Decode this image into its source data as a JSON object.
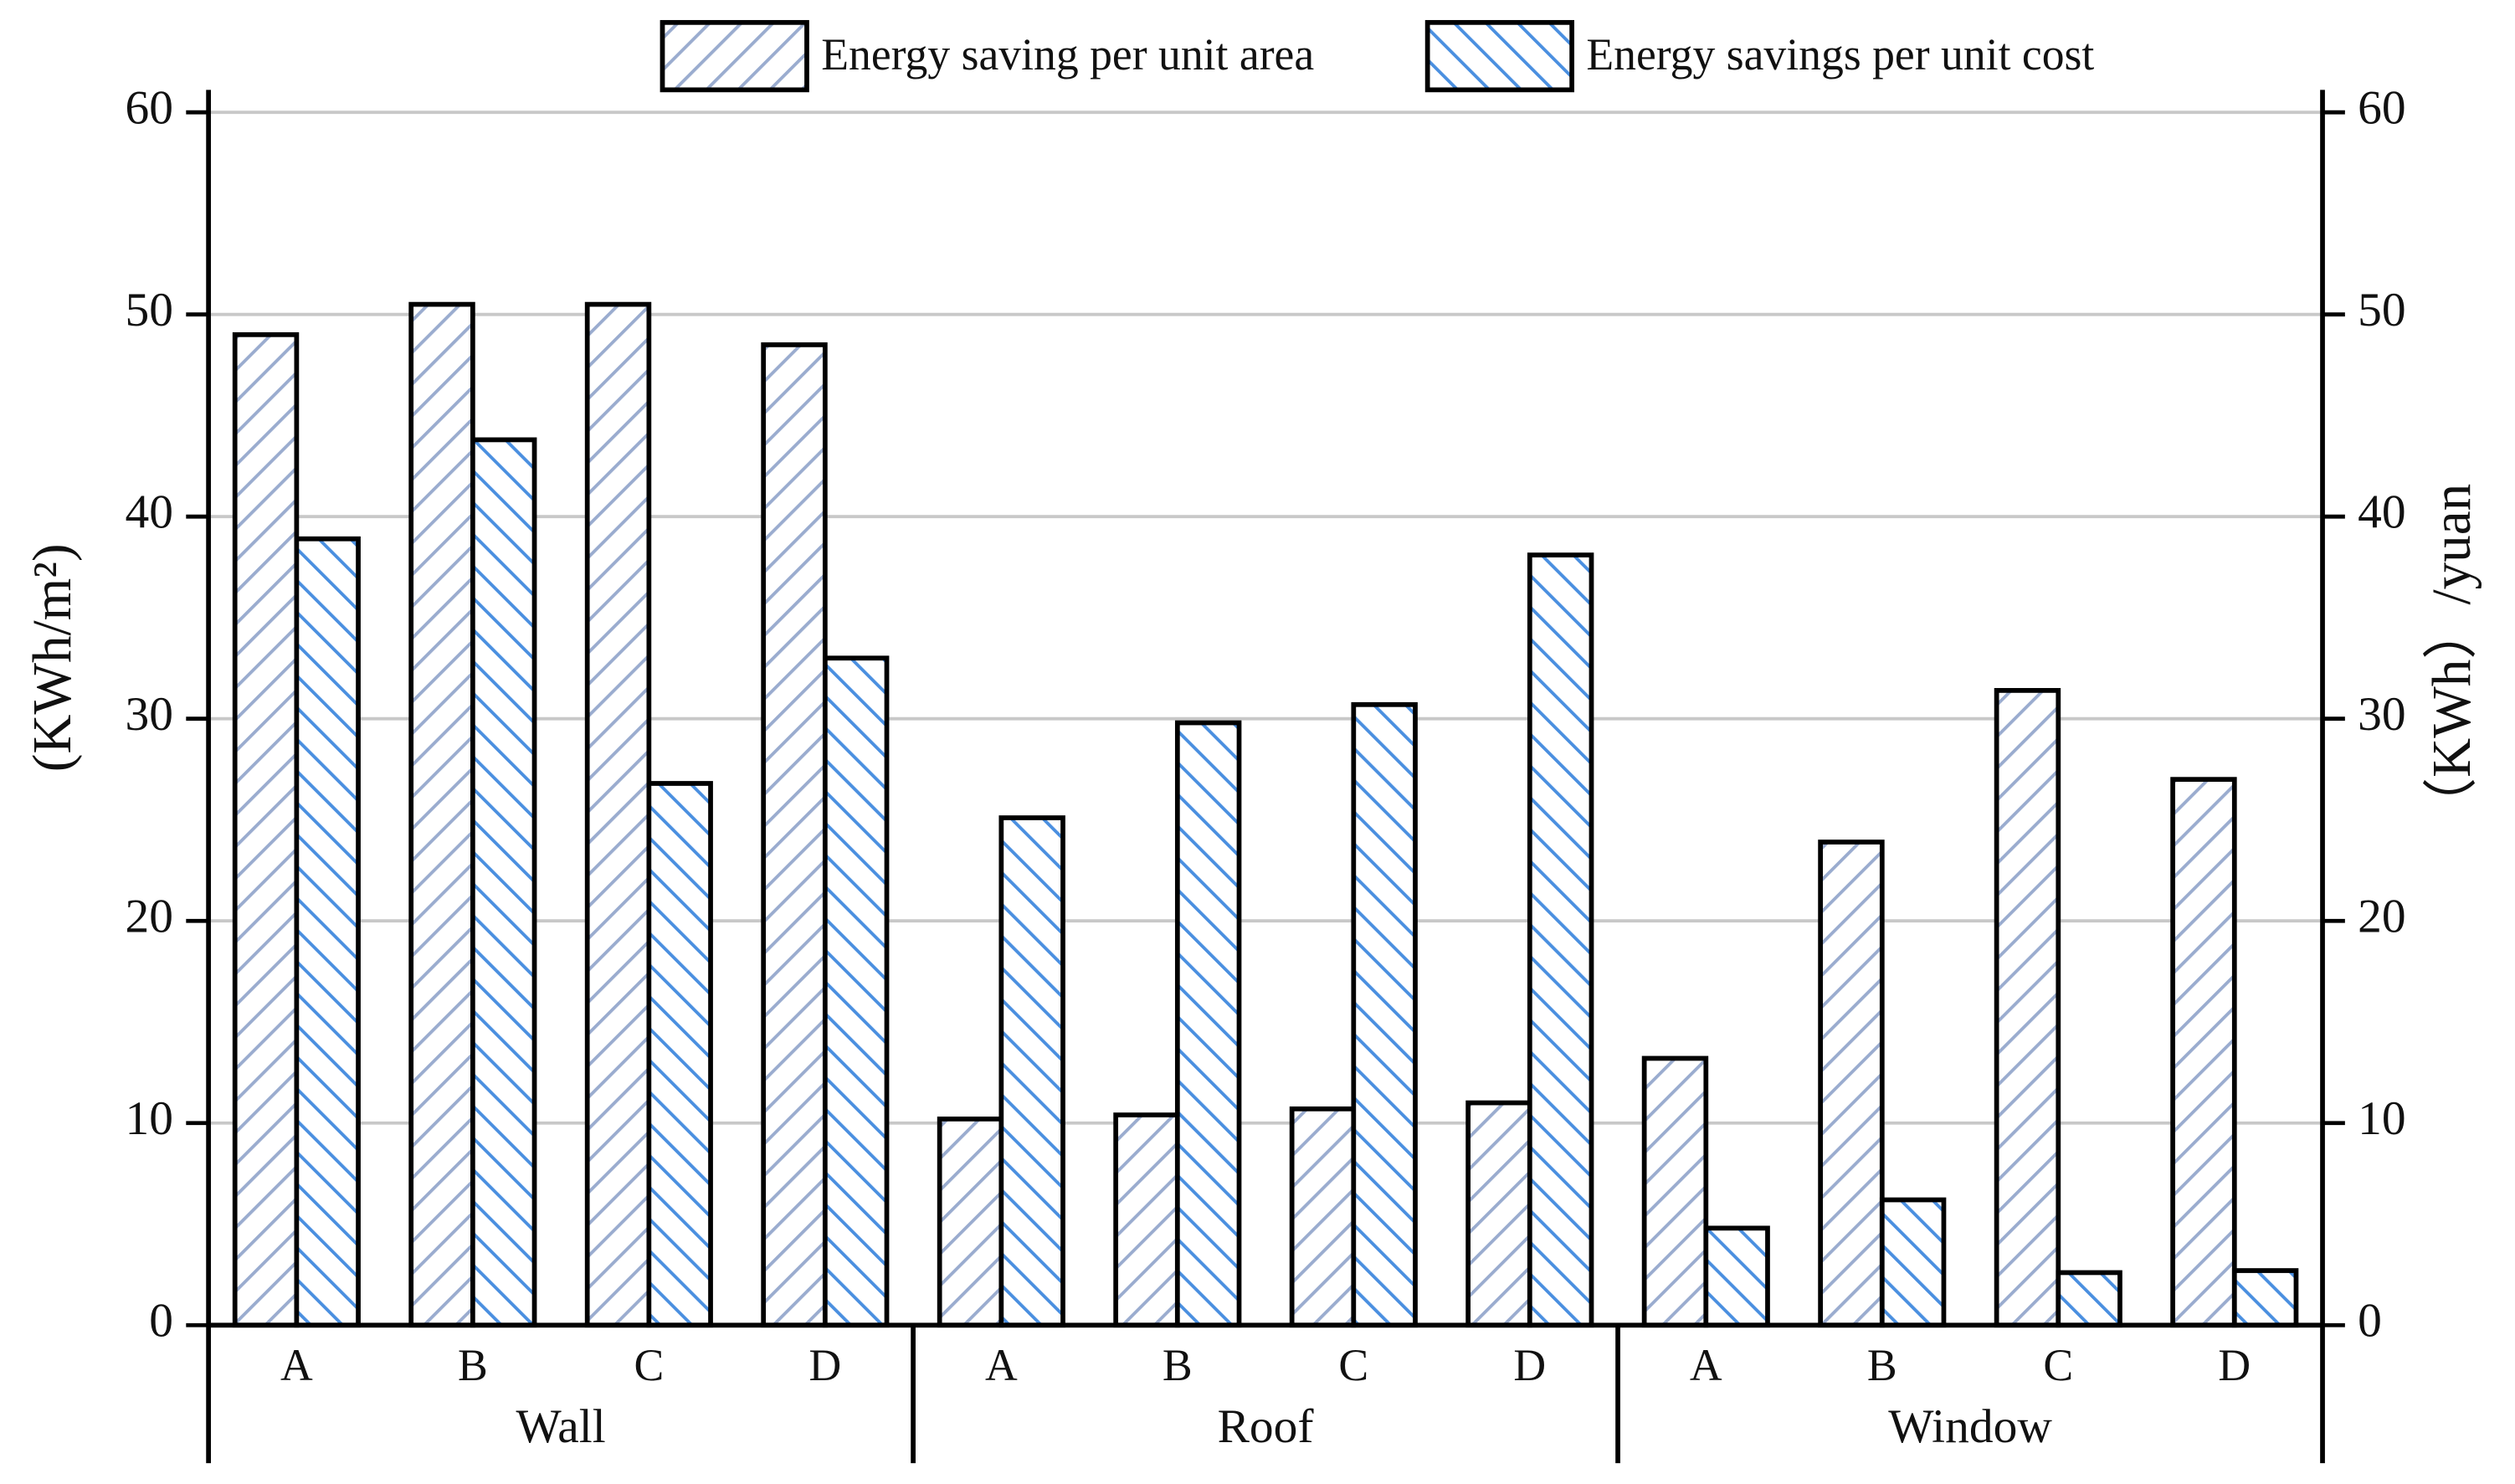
{
  "chart_data": {
    "type": "bar",
    "categories": [
      "A",
      "B",
      "C",
      "D",
      "A",
      "B",
      "C",
      "D",
      "A",
      "B",
      "C",
      "D"
    ],
    "groups": [
      "Wall",
      "Roof",
      "Window"
    ],
    "ylabel": "(KWh/m²)",
    "y2label": "（KWh）/yuan",
    "ylim": [
      0,
      60
    ],
    "yticks": [
      0,
      10,
      20,
      30,
      40,
      50,
      60
    ],
    "y2lim": [
      0,
      60
    ],
    "y2ticks": [
      0,
      10,
      20,
      30,
      40,
      50,
      60
    ],
    "grid": true,
    "legend": "top",
    "series": [
      {
        "name": "Energy saving per unit area",
        "color": "#9aaccf",
        "axis": "y",
        "values": [
          49,
          50.5,
          50.5,
          48.5,
          10.2,
          10.4,
          10.7,
          11,
          13.2,
          23.9,
          31.4,
          27
        ]
      },
      {
        "name": "Energy savings per unit cost",
        "color": "#4a8fe0",
        "axis": "y2",
        "values": [
          38.9,
          43.8,
          26.8,
          33,
          25.1,
          29.8,
          30.7,
          38.1,
          4.8,
          6.2,
          2.6,
          2.7
        ]
      }
    ]
  }
}
